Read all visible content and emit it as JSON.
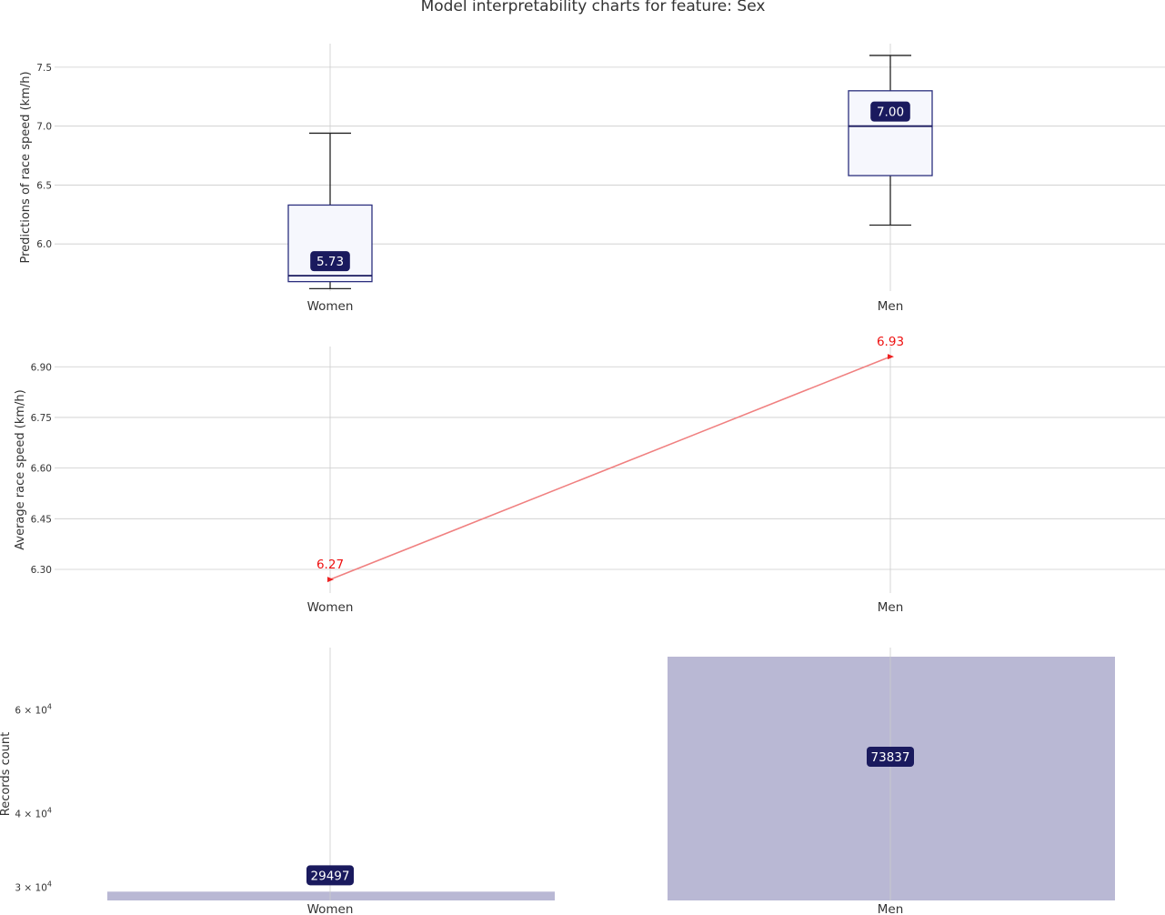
{
  "title": "Model interpretability charts for feature: Sex",
  "colors": {
    "box_edge": "#2b2f7e",
    "box_fill": "#f6f7fd",
    "whisker": "#222222",
    "badge": "#1a1a5e",
    "line": "#f08080",
    "marker": "#ee2222",
    "bar": "#b9b8d4",
    "grid": "#cccccc"
  },
  "chart_data": [
    {
      "type": "box",
      "ylabel": "Predictions of race speed (km/h)",
      "categories": [
        "Women",
        "Men"
      ],
      "ylim": [
        5.6,
        7.7
      ],
      "yticks": [
        "6.0",
        "6.5",
        "7.0",
        "7.5"
      ],
      "boxes": [
        {
          "category": "Women",
          "whisker_low": 5.62,
          "q1": 5.68,
          "median": 5.73,
          "q3": 6.33,
          "whisker_high": 6.94,
          "median_label": "5.73"
        },
        {
          "category": "Men",
          "whisker_low": 6.16,
          "q1": 6.58,
          "median": 7.0,
          "q3": 7.3,
          "whisker_high": 7.6,
          "median_label": "7.00"
        }
      ]
    },
    {
      "type": "line",
      "ylabel": "Average race speed (km/h)",
      "categories": [
        "Women",
        "Men"
      ],
      "values": [
        6.27,
        6.93
      ],
      "value_labels": [
        "6.27",
        "6.93"
      ],
      "ylim": [
        6.23,
        6.96
      ],
      "yticks": [
        "6.30",
        "6.45",
        "6.60",
        "6.75",
        "6.90"
      ]
    },
    {
      "type": "bar",
      "ylabel": "Records count",
      "scale": "log",
      "categories": [
        "Women",
        "Men"
      ],
      "values": [
        29497,
        73837
      ],
      "value_labels": [
        "29497",
        "73837"
      ],
      "ylim": [
        28500,
        76500
      ],
      "yticks": [
        {
          "value": 30000,
          "mantissa": "3",
          "exp": "4"
        },
        {
          "value": 40000,
          "mantissa": "4",
          "exp": "4"
        },
        {
          "value": 60000,
          "mantissa": "6",
          "exp": "4"
        }
      ]
    }
  ]
}
